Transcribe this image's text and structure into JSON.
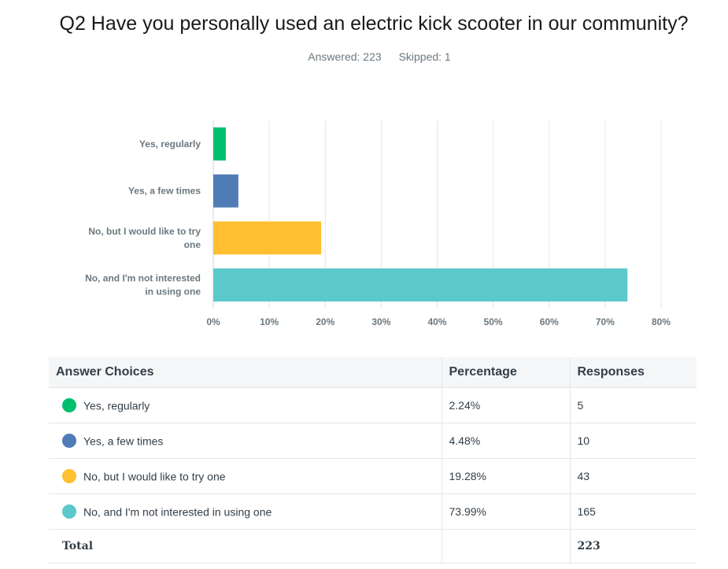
{
  "question": {
    "title": "Q2 Have you personally used an electric kick scooter in our community?",
    "answered_label": "Answered: 223",
    "skipped_label": "Skipped: 1"
  },
  "chart_data": {
    "type": "bar",
    "orientation": "horizontal",
    "categories": [
      [
        "Yes, regularly"
      ],
      [
        "Yes, a few times"
      ],
      [
        "No, but I would like to try",
        "one"
      ],
      [
        "No, and I'm not interested",
        "in using one"
      ]
    ],
    "values": [
      2.24,
      4.48,
      19.28,
      73.99
    ],
    "colors": [
      "#00bf6f",
      "#507cb6",
      "#ffbf30",
      "#5bc8cc"
    ],
    "xlim": [
      0,
      80
    ],
    "ticks": [
      "0%",
      "10%",
      "20%",
      "30%",
      "40%",
      "50%",
      "60%",
      "70%",
      "80%"
    ],
    "grid": true,
    "title": "",
    "xlabel": "",
    "ylabel": ""
  },
  "table": {
    "headers": [
      "Answer Choices",
      "Percentage",
      "Responses"
    ],
    "rows": [
      {
        "choice": "Yes, regularly",
        "percentage": "2.24%",
        "responses": "5",
        "color": "#00bf6f"
      },
      {
        "choice": "Yes, a few times",
        "percentage": "4.48%",
        "responses": "10",
        "color": "#507cb6"
      },
      {
        "choice": "No, but I would like to try one",
        "percentage": "19.28%",
        "responses": "43",
        "color": "#ffbf30"
      },
      {
        "choice": "No, and I'm not interested in using one",
        "percentage": "73.99%",
        "responses": "165",
        "color": "#5bc8cc"
      }
    ],
    "total_label": "Total",
    "total_responses": "223"
  }
}
